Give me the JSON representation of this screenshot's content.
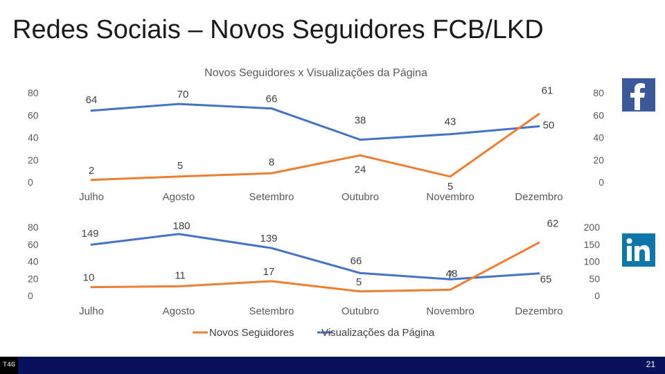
{
  "slide": {
    "title": "Redes Sociais – Novos Seguidores FCB/LKD",
    "page_number": "21",
    "logo_text": "T4G"
  },
  "chart_data": [
    {
      "type": "line",
      "platform": "facebook",
      "title": "Novos Seguidores x Visualizações da Página",
      "categories": [
        "Julho",
        "Agosto",
        "Setembro",
        "Outubro",
        "Novembro",
        "Dezembro"
      ],
      "left_axis": {
        "ylim": [
          0,
          80
        ],
        "ticks": [
          0,
          20,
          40,
          60,
          80
        ]
      },
      "right_axis": {
        "ylim": [
          0,
          80
        ],
        "ticks": [
          0,
          20,
          40,
          60,
          80
        ]
      },
      "series": [
        {
          "name": "Visualizações da Página",
          "axis": "left",
          "color": "#4472c4",
          "values": [
            64,
            70,
            66,
            38,
            43,
            50
          ]
        },
        {
          "name": "Novos Seguidores",
          "axis": "right",
          "color": "#ed7d31",
          "values": [
            2,
            5,
            8,
            24,
            5,
            61
          ]
        }
      ]
    },
    {
      "type": "line",
      "platform": "linkedin",
      "categories": [
        "Julho",
        "Agosto",
        "Setembro",
        "Outubro",
        "Novembro",
        "Dezembro"
      ],
      "left_axis": {
        "ylim": [
          0,
          80
        ],
        "ticks": [
          0,
          20,
          40,
          60,
          80
        ]
      },
      "right_axis": {
        "ylim": [
          0,
          200
        ],
        "ticks": [
          0,
          50,
          100,
          150,
          200
        ]
      },
      "series": [
        {
          "name": "Visualizações da Página",
          "axis": "right",
          "color": "#4472c4",
          "values": [
            149,
            180,
            139,
            66,
            48,
            65
          ]
        },
        {
          "name": "Novos Seguidores",
          "axis": "left",
          "color": "#ed7d31",
          "values": [
            10,
            11,
            17,
            5,
            7,
            62
          ]
        }
      ]
    }
  ],
  "legend": [
    {
      "label": "Novos Seguidores",
      "color": "#ed7d31"
    },
    {
      "label": "Visualizações da Página",
      "color": "#4472c4"
    }
  ],
  "icons": {
    "facebook": "facebook-icon",
    "linkedin": "linkedin-icon"
  }
}
